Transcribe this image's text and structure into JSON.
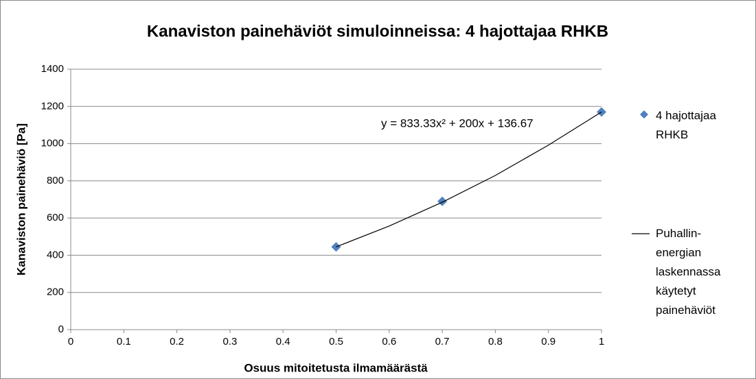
{
  "chart_data": {
    "type": "scatter",
    "title": "Kanaviston painehäviöt simuloinneissa: 4 hajottajaa RHKB",
    "x_label": "Osuus mitoitetusta ilmamäärästä",
    "y_label": "Kanaviston painehäviö [Pa]",
    "annotation": "y = 833.33x² + 200x + 136.67",
    "series": [
      {
        "name": "4 hajottajaa RHKB",
        "color": "#4f81bd",
        "marker": "diamond",
        "x": [
          0.5,
          0.7,
          1
        ],
        "values": [
          445,
          690,
          1170
        ]
      },
      {
        "name": "Puhallin-energian laskennassa käytetyt painehäviöt",
        "color": "#000000",
        "marker": "line",
        "x": [
          0.5,
          0.6,
          0.7,
          0.8,
          0.9,
          1
        ],
        "values": [
          445,
          557,
          685,
          829,
          992,
          1170
        ]
      }
    ],
    "xlim": [
      0,
      1
    ],
    "xticks": [
      0,
      0.1,
      0.2,
      0.3,
      0.4,
      0.5,
      0.6,
      0.7,
      0.8,
      0.9,
      1
    ],
    "ylim": [
      0,
      1400
    ],
    "yticks": [
      0,
      200,
      400,
      600,
      800,
      1000,
      1200,
      1400
    ],
    "grid": true,
    "legend": "right"
  }
}
